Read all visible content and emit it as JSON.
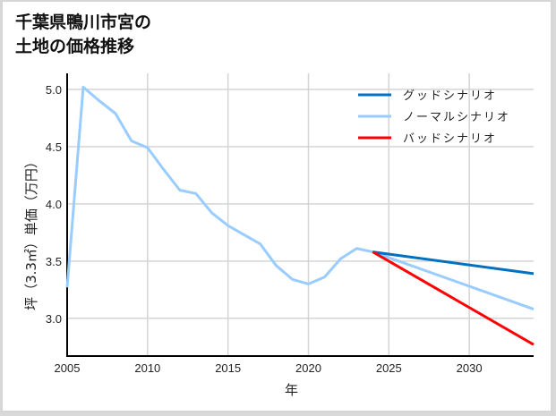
{
  "header": {
    "title_line1": "千葉県鴨川市宮の",
    "title_line2": "土地の価格推移"
  },
  "chart_data": {
    "type": "line",
    "title": "千葉県鴨川市宮の土地の価格推移",
    "xlabel": "年",
    "ylabel": "坪（3.3㎡）単価（万円）",
    "xlim": [
      2005,
      2034
    ],
    "ylim": [
      2.67,
      5.14
    ],
    "xticks": [
      2005,
      2010,
      2015,
      2020,
      2025,
      2030
    ],
    "yticks": [
      3.0,
      3.5,
      4.0,
      4.5,
      5.0
    ],
    "grid": true,
    "legend_position": "upper right",
    "series": [
      {
        "name": "グッドシナリオ",
        "color": "#0070c0",
        "x": [
          2024,
          2034
        ],
        "values": [
          3.58,
          3.39
        ]
      },
      {
        "name": "ノーマルシナリオ",
        "color": "#99ccff",
        "x": [
          2005,
          2006,
          2007,
          2008,
          2009,
          2010,
          2011,
          2012,
          2013,
          2014,
          2015,
          2016,
          2017,
          2018,
          2019,
          2020,
          2021,
          2022,
          2023,
          2024,
          2034
        ],
        "values": [
          3.27,
          5.02,
          4.9,
          4.79,
          4.55,
          4.49,
          4.3,
          4.12,
          4.09,
          3.92,
          3.81,
          3.73,
          3.65,
          3.46,
          3.34,
          3.3,
          3.36,
          3.52,
          3.61,
          3.58,
          3.08
        ]
      },
      {
        "name": "バッドシナリオ",
        "color": "#ff0000",
        "x": [
          2024,
          2034
        ],
        "values": [
          3.58,
          2.77
        ]
      }
    ]
  }
}
